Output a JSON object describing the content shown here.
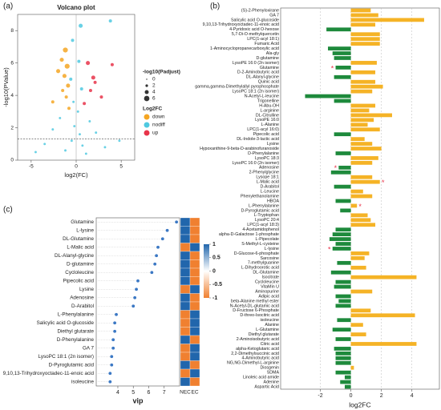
{
  "chart_data": [
    {
      "type": "scatter",
      "panel_label": "(a)",
      "title": "Volcano plot",
      "x_label": "log2(FC)",
      "y_label": "-log10(PValue)",
      "xlim": [
        -6.5,
        6.5
      ],
      "xticks": [
        -5,
        0,
        5
      ],
      "ylim": [
        0,
        9
      ],
      "yticks": [
        0,
        2,
        4,
        6,
        8
      ],
      "threshold_y": 1.3,
      "zero_x": 0,
      "size_legend": {
        "title": "-log10(Padjust)",
        "values": [
          0,
          2,
          4,
          6
        ]
      },
      "legend_title": "Log2FC",
      "series": [
        {
          "name": "down",
          "color": "#f5a623",
          "x": [
            -1.2,
            -1.6,
            -1.0,
            -2.0,
            -1.3,
            -0.9,
            -1.5,
            -2.6,
            -1.1,
            -0.8
          ],
          "values": [
            6.8,
            6.2,
            5.8,
            5.5,
            5.2,
            4.6,
            4.3,
            3.6,
            3.9,
            3.2
          ],
          "sizes": [
            4,
            3,
            4,
            3,
            3,
            3,
            2,
            2,
            2,
            2
          ]
        },
        {
          "name": "nodiff",
          "color": "#4fc9e0",
          "x": [
            0.5,
            3.8,
            -0.4,
            0.3,
            -0.6,
            0.6,
            -0.3,
            0.2,
            -1.8,
            1.5,
            -2.6,
            2.2,
            -0.5,
            0.7,
            -1.2,
            1.1,
            -3.5,
            3.2,
            -0.2,
            0.4,
            -4.5,
            4.8
          ],
          "values": [
            8.3,
            8.6,
            7.4,
            6.1,
            5.0,
            4.4,
            3.6,
            3.0,
            2.6,
            2.4,
            1.9,
            1.7,
            1.2,
            0.9,
            0.6,
            0.4,
            1.0,
            0.8,
            2.1,
            1.6,
            0.5,
            1.2
          ],
          "sizes": [
            3,
            2,
            2,
            2,
            2,
            2,
            1,
            1,
            1,
            1,
            1,
            1,
            1,
            1,
            1,
            1,
            1,
            1,
            1,
            1,
            1,
            1
          ]
        },
        {
          "name": "up",
          "color": "#e8344a",
          "x": [
            1.3,
            2.1,
            1.6,
            4.0,
            0.9,
            2.8,
            1.9
          ],
          "values": [
            6.0,
            4.8,
            4.3,
            5.9,
            3.5,
            3.9,
            5.1
          ],
          "sizes": [
            3,
            2,
            2,
            2,
            2,
            2,
            3
          ]
        }
      ]
    },
    {
      "type": "hbar",
      "panel_label": "(b)",
      "x_label": "log2FC",
      "xlim": [
        -4.6,
        5.8
      ],
      "xticks": [
        -2,
        0,
        2,
        4
      ],
      "grid": true,
      "color_positive": "#f5b326",
      "color_negative": "#1e8a3c",
      "annotation_color": "#e8344a",
      "categories": [
        "(S)-2-Phenyloxirane",
        "GA 7",
        "Salicylic acid O-glucoside",
        "9,10,13-Trihydroxyoctadec-11-enoic acid",
        "4-Pyridoxic acid O-hexose",
        "5,7-Di-O-methylquercetin",
        "LPC(1-acyl 18:1)",
        "Fumaric Acid",
        "1-Aminocyclopropanecarboxylic acid",
        "Ala-gly",
        "D-glutamine",
        "LysoPE 16:0 (2n isomer)",
        "Glutamine",
        "D-2-Aminobutyric acid",
        "DL-Alanyl-glycine",
        "Quinic acid",
        "gamma,gamma-Dimethylallyl pyrophosphate",
        "LysoPC 18:1 (2n isomer)",
        "N-Acetyl-L-leucine",
        "Trigonelline",
        "H-Abu-OH",
        "L-arginine",
        "DL-Citrulline",
        "LysoPE 16:0",
        "L-Alanine",
        "LPC(1-acyl 16:0)",
        "Pipecolic acid",
        "DL-Indole-3-lactic acid",
        "Lysine",
        "Hypoxanthine-9-beta-D-arabinofuranoside",
        "D-Phenylalanine",
        "LysoPC 18:3",
        "LysoPC 16:0 (2n isomer)",
        "Adenosine",
        "2-Phenylglycine",
        "Lysope 18:1",
        "L-Malic acid",
        "D-Arabitol",
        "L-Leucine",
        "Phenylethanolamine",
        "HBOA",
        "L-Phenylalanine",
        "D-Pyroglutamic acid",
        "L-Tryptophan",
        "LysoPC 20:4",
        "LPC(1-acyl 18:3)",
        "4-Acetamidophenol",
        "alpha-D-Galactose 1-phosphate",
        "L-Pipecolate",
        "S-Methyl-L-cysteine",
        "L-lysine",
        "D-Glucose-6-phosphate",
        "Sarcosine",
        "7-methylguanine",
        "L-Dihydroorotic acid",
        "DL-Glutamine",
        "Isocitrate",
        "Cycloleucine",
        "VitaMin U",
        "Aminopurine",
        "Adipic acid",
        "beta-Alanine methyl ester",
        "N-Acetyl-DL-glutamic acid",
        "D-Fructose 6-Phosphate",
        "D-threo-Isocitric acid",
        "isoleucine",
        "Alanine",
        "L-Glutamine",
        "Diethyl glutarate",
        "2-Aminoisobutyric acid",
        "Citric acid",
        "alpha-Ketoglutaric acid",
        "2,2-Dimethylsuccinic acid",
        "4-Aminobutyric acid",
        "NG,NG-Dimethyl-L-arginine",
        "Diosgenin",
        "SDMA",
        "Linoleic acid amide",
        "Adenine",
        "Aspartic Acid"
      ],
      "values": [
        1.3,
        1.8,
        4.8,
        1.6,
        -1.6,
        1.9,
        1.9,
        1.9,
        -1.5,
        -1.2,
        -1.1,
        1.7,
        -1.0,
        1.6,
        -1.1,
        1.6,
        2.1,
        1.4,
        -3.0,
        -1.1,
        1.6,
        1.2,
        2.7,
        1.5,
        1.1,
        1.9,
        -1.1,
        0.9,
        1.4,
        2.0,
        -1.0,
        1.8,
        1.4,
        -0.8,
        -1.3,
        1.4,
        1.9,
        -1.1,
        0.8,
        1.4,
        -1.0,
        0.4,
        -0.7,
        1.1,
        1.3,
        1.6,
        -1.0,
        -1.2,
        -1.4,
        -1.0,
        -1.2,
        1.2,
        0.9,
        -0.9,
        1.0,
        -1.3,
        4.3,
        -1.0,
        -1.1,
        1.4,
        -1.0,
        -0.8,
        -1.0,
        1.3,
        4.2,
        -0.9,
        0.8,
        -1.2,
        1.0,
        -1.0,
        4.3,
        -1.1,
        -1.0,
        -1.0,
        -1.0,
        0.2,
        -1.0,
        -0.4,
        -0.7,
        -0.4
      ],
      "annotations": [
        {
          "label": "*",
          "category": "Glutamine"
        },
        {
          "label": "*",
          "category": "Adenosine"
        },
        {
          "label": "*",
          "category": "L-Malic acid"
        },
        {
          "label": "*",
          "category": "L-Phenylalanine"
        },
        {
          "label": "*",
          "category": "L-lysine"
        }
      ]
    },
    {
      "type": "dot",
      "panel_label": "(c)",
      "x_label": "vip",
      "xlim": [
        2.6,
        8.0
      ],
      "xticks": [
        4,
        5,
        6,
        7
      ],
      "color": "#3b78c4",
      "categories": [
        "Glutamine",
        "L-lysine",
        "DL-Glutamine",
        "L-Malic acid",
        "DL-Alanyl-glycine",
        "D-glutamine",
        "Cycloleucine",
        "Pipecolic acid",
        "Lysine",
        "Adenosine",
        "D-Arabitol",
        "L-Phenylalanine",
        "Salicylic acid O-glucoside",
        "Diethyl glutarate",
        "D-Phenylalanine",
        "GA 7",
        "LysoPC 18:1 (2n isomer)",
        "D-Pyroglutamic acid",
        "9,10,13-Trihydroxyoctadec-11-enoic acid",
        "isoleucine"
      ],
      "values": [
        7.8,
        7.2,
        6.9,
        6.6,
        6.5,
        6.4,
        6.2,
        5.3,
        5.2,
        5.1,
        5.0,
        3.9,
        3.8,
        3.8,
        3.7,
        3.7,
        3.6,
        3.6,
        3.5,
        3.5
      ],
      "heatmap": {
        "columns": [
          "NEC",
          "EC"
        ],
        "low_color": "#f08030",
        "mid_color": "#ffffff",
        "high_color": "#2166ac",
        "values": [
          [
            1,
            -1
          ],
          [
            1,
            -1
          ],
          [
            1,
            -1
          ],
          [
            -1,
            1
          ],
          [
            1,
            -1
          ],
          [
            1,
            -1
          ],
          [
            1,
            -1
          ],
          [
            1,
            -1
          ],
          [
            -1,
            1
          ],
          [
            1,
            -1
          ],
          [
            1,
            -1
          ],
          [
            -1,
            1
          ],
          [
            -1,
            1
          ],
          [
            -1,
            1
          ],
          [
            1,
            -1
          ],
          [
            -1,
            1
          ],
          [
            -1,
            1
          ],
          [
            1,
            -1
          ],
          [
            -1,
            1
          ],
          [
            1,
            -1
          ]
        ],
        "colorbar_lim": [
          -1,
          1
        ],
        "colorbar_ticks": [
          1,
          0.5,
          0,
          -0.5,
          -1
        ]
      }
    }
  ]
}
